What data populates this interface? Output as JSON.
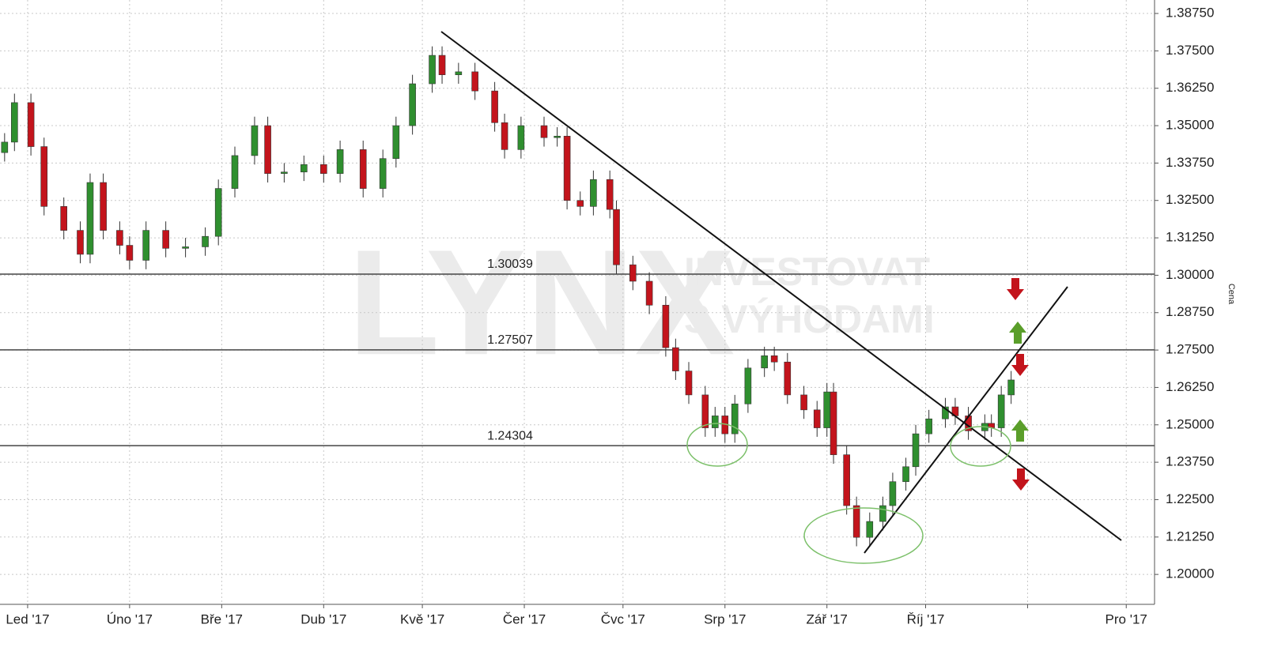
{
  "chart_data": {
    "type": "candlestick",
    "y_label": "Cena",
    "watermark": [
      "LYNX",
      "INVESTOVAT",
      "S VÝHODAMI"
    ],
    "up_color": "#2f8f2f",
    "down_color": "#c3141c",
    "grid": true,
    "xlim": [
      -7.4,
      343.6
    ],
    "ylim": [
      1.19,
      1.392
    ],
    "xticks": [
      {
        "value": 1,
        "label": "Led '17"
      },
      {
        "value": 32,
        "label": "Úno '17"
      },
      {
        "value": 60,
        "label": "Bře '17"
      },
      {
        "value": 91,
        "label": "Dub '17"
      },
      {
        "value": 121,
        "label": "Kvě '17"
      },
      {
        "value": 152,
        "label": "Čer '17"
      },
      {
        "value": 182,
        "label": "Čvc '17"
      },
      {
        "value": 213,
        "label": "Srp '17"
      },
      {
        "value": 244,
        "label": "Zář '17"
      },
      {
        "value": 274,
        "label": "Říj '17"
      },
      {
        "value": 305,
        "label": null
      },
      {
        "value": 335,
        "label": "Pro '17"
      }
    ],
    "yticks": [
      {
        "value": 1.2,
        "label": "1.20000"
      },
      {
        "value": 1.2125,
        "label": "1.21250"
      },
      {
        "value": 1.225,
        "label": "1.22500"
      },
      {
        "value": 1.2375,
        "label": "1.23750"
      },
      {
        "value": 1.25,
        "label": "1.25000"
      },
      {
        "value": 1.2625,
        "label": "1.26250"
      },
      {
        "value": 1.275,
        "label": "1.27500"
      },
      {
        "value": 1.2875,
        "label": "1.28750"
      },
      {
        "value": 1.3,
        "label": "1.30000"
      },
      {
        "value": 1.3125,
        "label": "1.31250"
      },
      {
        "value": 1.325,
        "label": "1.32500"
      },
      {
        "value": 1.3375,
        "label": "1.33750"
      },
      {
        "value": 1.35,
        "label": "1.35000"
      },
      {
        "value": 1.3625,
        "label": "1.36250"
      },
      {
        "value": 1.375,
        "label": "1.37500"
      },
      {
        "value": 1.3875,
        "label": "1.38750"
      }
    ],
    "levels": [
      1.30039,
      1.27507,
      1.24304
    ],
    "x": [
      -6,
      -3,
      2,
      6,
      12,
      17,
      20,
      24,
      29,
      32,
      37,
      43,
      49,
      55,
      59,
      64,
      70,
      74,
      79,
      85,
      91,
      96,
      103,
      109,
      113,
      118,
      124,
      127,
      132,
      137,
      143,
      146,
      151,
      158,
      162,
      165,
      169,
      173,
      178,
      180,
      185,
      190,
      195,
      198,
      202,
      207,
      210,
      213,
      216,
      220,
      225,
      228,
      232,
      237,
      241,
      244,
      246,
      250,
      253,
      257,
      261,
      264,
      268,
      271,
      275,
      280,
      283,
      287,
      292,
      294,
      297,
      300
    ],
    "open": [
      1.341,
      1.3445,
      1.3577,
      1.343,
      1.323,
      1.315,
      1.307,
      1.331,
      1.315,
      1.31,
      1.305,
      1.315,
      1.309,
      1.3095,
      1.313,
      1.329,
      1.34,
      1.35,
      1.334,
      1.3345,
      1.337,
      1.334,
      1.342,
      1.329,
      1.339,
      1.35,
      1.364,
      1.3735,
      1.367,
      1.368,
      1.3616,
      1.351,
      1.342,
      1.35,
      1.346,
      1.3465,
      1.325,
      1.323,
      1.332,
      1.322,
      1.3035,
      1.298,
      1.29,
      1.2758,
      1.268,
      1.26,
      1.249,
      1.253,
      1.247,
      1.257,
      1.269,
      1.2731,
      1.271,
      1.26,
      1.255,
      1.249,
      1.261,
      1.24,
      1.223,
      1.2124,
      1.2177,
      1.223,
      1.231,
      1.236,
      1.247,
      1.252,
      1.256,
      1.253,
      1.248,
      1.2505,
      1.249,
      1.26
    ],
    "high": [
      1.3475,
      1.3607,
      1.3607,
      1.346,
      1.326,
      1.318,
      1.334,
      1.334,
      1.318,
      1.313,
      1.318,
      1.318,
      1.3125,
      1.316,
      1.332,
      1.343,
      1.353,
      1.353,
      1.3375,
      1.34,
      1.34,
      1.345,
      1.345,
      1.342,
      1.353,
      1.367,
      1.3765,
      1.3765,
      1.371,
      1.371,
      1.3646,
      1.354,
      1.353,
      1.353,
      1.3495,
      1.3495,
      1.328,
      1.335,
      1.335,
      1.325,
      1.3065,
      1.301,
      1.293,
      1.2788,
      1.271,
      1.263,
      1.256,
      1.256,
      1.26,
      1.272,
      1.2761,
      1.2761,
      1.274,
      1.263,
      1.258,
      1.264,
      1.264,
      1.243,
      1.226,
      1.2207,
      1.226,
      1.234,
      1.239,
      1.25,
      1.255,
      1.259,
      1.259,
      1.256,
      1.2535,
      1.2535,
      1.263,
      1.268
    ],
    "low": [
      1.338,
      1.3415,
      1.34,
      1.32,
      1.312,
      1.304,
      1.304,
      1.312,
      1.307,
      1.302,
      1.302,
      1.306,
      1.306,
      1.3065,
      1.31,
      1.326,
      1.337,
      1.331,
      1.331,
      1.3315,
      1.331,
      1.331,
      1.326,
      1.326,
      1.336,
      1.347,
      1.361,
      1.364,
      1.364,
      1.3586,
      1.348,
      1.339,
      1.339,
      1.343,
      1.343,
      1.322,
      1.32,
      1.32,
      1.319,
      1.3005,
      1.295,
      1.287,
      1.2728,
      1.265,
      1.257,
      1.246,
      1.246,
      1.244,
      1.244,
      1.254,
      1.266,
      1.268,
      1.257,
      1.252,
      1.246,
      1.246,
      1.237,
      1.22,
      1.2094,
      1.2094,
      1.2147,
      1.22,
      1.228,
      1.233,
      1.244,
      1.249,
      1.25,
      1.245,
      1.245,
      1.246,
      1.246,
      1.257
    ],
    "close": [
      1.3445,
      1.3577,
      1.343,
      1.323,
      1.315,
      1.307,
      1.331,
      1.315,
      1.31,
      1.305,
      1.315,
      1.309,
      1.3095,
      1.313,
      1.329,
      1.34,
      1.35,
      1.334,
      1.3345,
      1.337,
      1.334,
      1.342,
      1.329,
      1.339,
      1.35,
      1.364,
      1.3735,
      1.367,
      1.368,
      1.3616,
      1.351,
      1.342,
      1.35,
      1.346,
      1.3465,
      1.325,
      1.323,
      1.332,
      1.322,
      1.3035,
      1.298,
      1.29,
      1.2758,
      1.268,
      1.26,
      1.249,
      1.253,
      1.247,
      1.257,
      1.269,
      1.2731,
      1.271,
      1.26,
      1.255,
      1.249,
      1.261,
      1.24,
      1.223,
      1.2124,
      1.2177,
      1.223,
      1.231,
      1.236,
      1.247,
      1.252,
      1.256,
      1.253,
      1.248,
      1.2505,
      1.249,
      1.26,
      1.265
    ]
  }
}
